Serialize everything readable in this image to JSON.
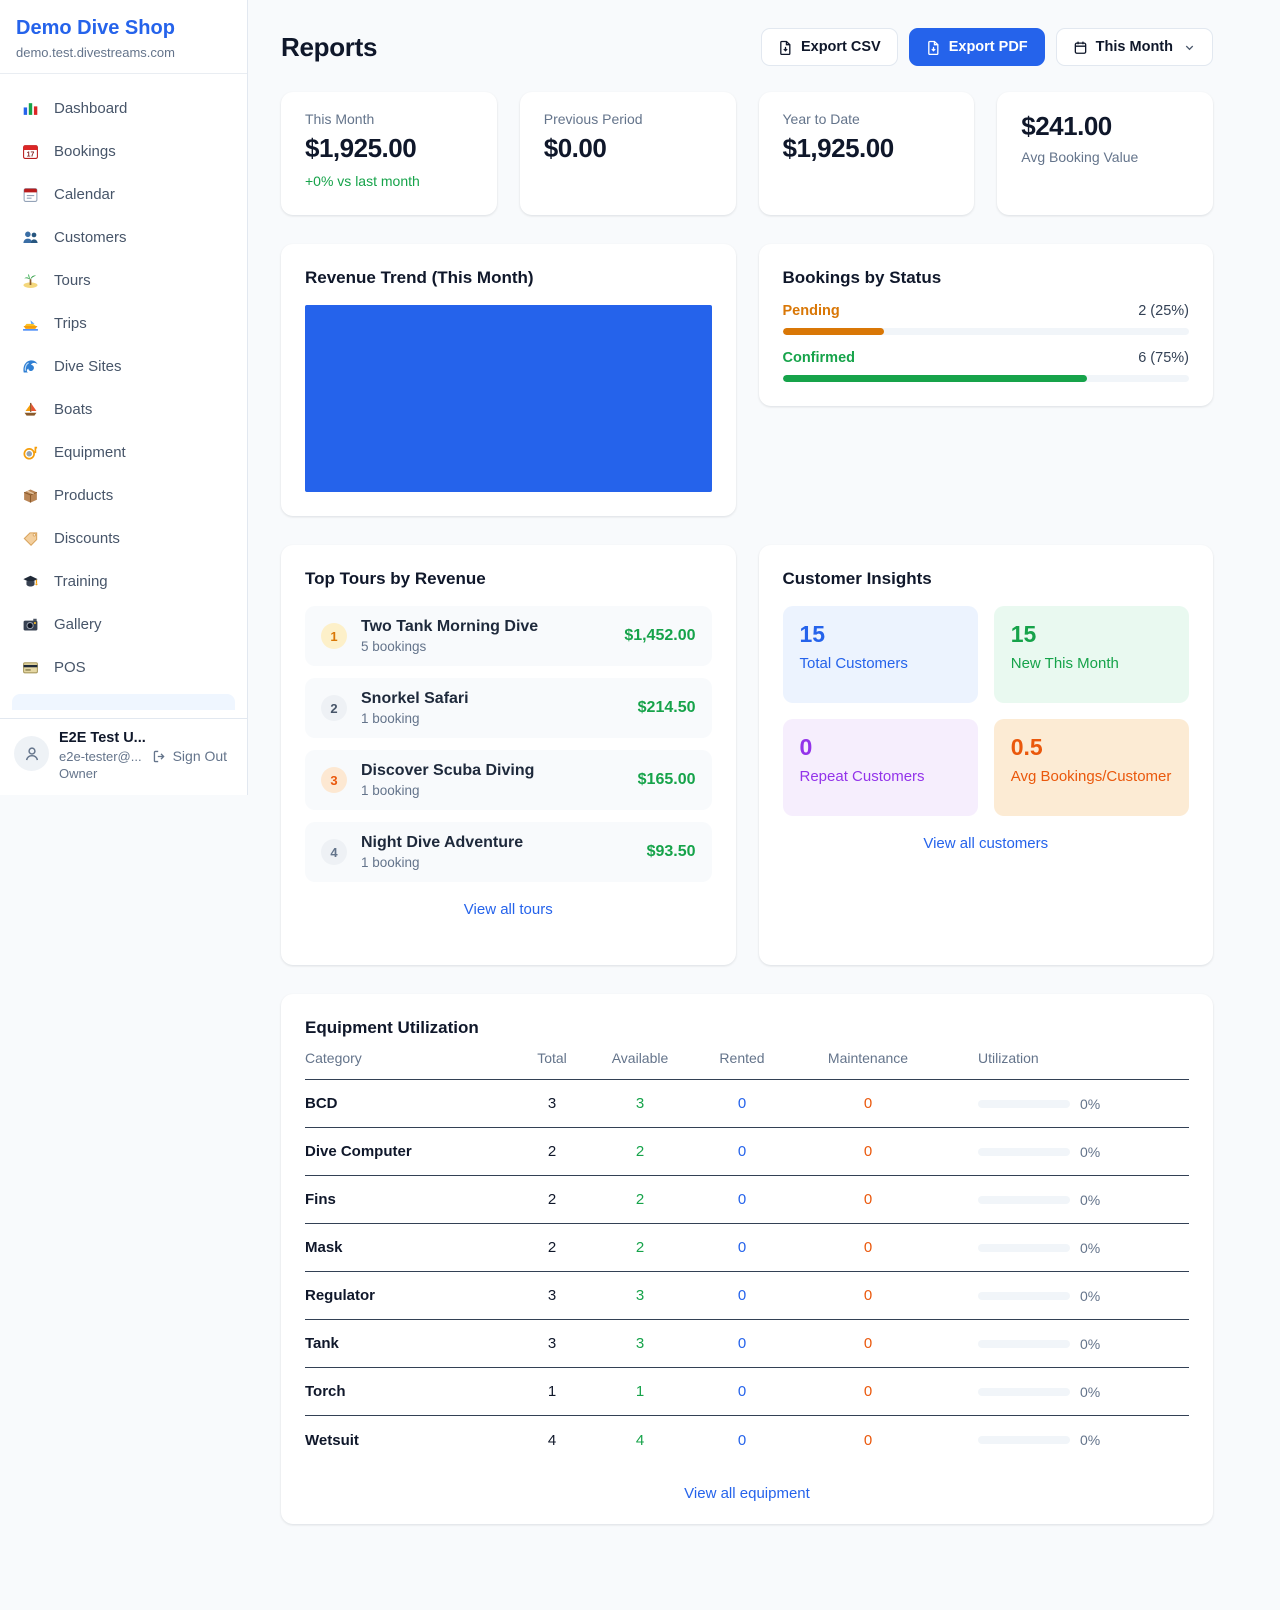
{
  "colors": {
    "accent_blue": "#2563eb",
    "green": "#16a34a",
    "pending_orange": "#d97706",
    "maintenance_orange": "#ea580c",
    "purple": "#9333ea",
    "muted_gray": "#64748b"
  },
  "sidebar": {
    "brand": {
      "name": "Demo Dive Shop",
      "domain": "demo.test.divestreams.com"
    },
    "nav": [
      {
        "icon": "dashboard",
        "label": "Dashboard"
      },
      {
        "icon": "bookings",
        "label": "Bookings"
      },
      {
        "icon": "calendar",
        "label": "Calendar"
      },
      {
        "icon": "customers",
        "label": "Customers"
      },
      {
        "icon": "tours",
        "label": "Tours"
      },
      {
        "icon": "trips",
        "label": "Trips"
      },
      {
        "icon": "divesites",
        "label": "Dive Sites"
      },
      {
        "icon": "boats",
        "label": "Boats"
      },
      {
        "icon": "equipment",
        "label": "Equipment"
      },
      {
        "icon": "products",
        "label": "Products"
      },
      {
        "icon": "discounts",
        "label": "Discounts"
      },
      {
        "icon": "training",
        "label": "Training"
      },
      {
        "icon": "gallery",
        "label": "Gallery"
      },
      {
        "icon": "pos",
        "label": "POS"
      }
    ],
    "user": {
      "name": "E2E Test U...",
      "email": "e2e-tester@...",
      "role": "Owner",
      "sign_out": "Sign Out"
    }
  },
  "header": {
    "title": "Reports",
    "export_csv_label": "Export CSV",
    "export_pdf_label": "Export PDF",
    "period_label": "This Month"
  },
  "stats": [
    {
      "label": "This Month",
      "value": "$1,925.00",
      "note": "+0% vs last month"
    },
    {
      "label": "Previous Period",
      "value": "$0.00"
    },
    {
      "label": "Year to Date",
      "value": "$1,925.00"
    },
    {
      "label": "Avg Booking Value",
      "value": "$241.00"
    }
  ],
  "revenue_trend": {
    "title": "Revenue Trend (This Month)",
    "bar_color": "#2563eb"
  },
  "chart_data": {
    "type": "bar",
    "title": "Revenue Trend (This Month)",
    "categories": [
      "This Month"
    ],
    "values": [
      1925.0
    ],
    "note": "single full-height bar filling entire plot area, no axes or labels visible"
  },
  "bookings_by_status": {
    "title": "Bookings by Status",
    "items": [
      {
        "label": "Pending",
        "count": "2 (25%)",
        "pct": 25,
        "color": "#d97706"
      },
      {
        "label": "Confirmed",
        "count": "6 (75%)",
        "pct": 75,
        "color": "#16a34a"
      }
    ]
  },
  "top_tours": {
    "title": "Top Tours by Revenue",
    "items": [
      {
        "rank": "1",
        "name": "Two Tank Morning Dive",
        "bookings": "5 bookings",
        "revenue": "$1,452.00"
      },
      {
        "rank": "2",
        "name": "Snorkel Safari",
        "bookings": "1 booking",
        "revenue": "$214.50"
      },
      {
        "rank": "3",
        "name": "Discover Scuba Diving",
        "bookings": "1 booking",
        "revenue": "$165.00"
      },
      {
        "rank": "4",
        "name": "Night Dive Adventure",
        "bookings": "1 booking",
        "revenue": "$93.50"
      }
    ],
    "view_all": "View all tours"
  },
  "customer_insights": {
    "title": "Customer Insights",
    "tiles": [
      {
        "value": "15",
        "label": "Total Customers"
      },
      {
        "value": "15",
        "label": "New This Month"
      },
      {
        "value": "0",
        "label": "Repeat Customers"
      },
      {
        "value": "0.5",
        "label": "Avg Bookings/Customer"
      }
    ],
    "view_all": "View all customers"
  },
  "equipment": {
    "title": "Equipment Utilization",
    "columns": [
      "Category",
      "Total",
      "Available",
      "Rented",
      "Maintenance",
      "Utilization"
    ],
    "rows": [
      {
        "category": "BCD",
        "total": "3",
        "available": "3",
        "rented": "0",
        "maintenance": "0",
        "utilization_pct": 0,
        "utilization_text": "0%"
      },
      {
        "category": "Dive Computer",
        "total": "2",
        "available": "2",
        "rented": "0",
        "maintenance": "0",
        "utilization_pct": 0,
        "utilization_text": "0%"
      },
      {
        "category": "Fins",
        "total": "2",
        "available": "2",
        "rented": "0",
        "maintenance": "0",
        "utilization_pct": 0,
        "utilization_text": "0%"
      },
      {
        "category": "Mask",
        "total": "2",
        "available": "2",
        "rented": "0",
        "maintenance": "0",
        "utilization_pct": 0,
        "utilization_text": "0%"
      },
      {
        "category": "Regulator",
        "total": "3",
        "available": "3",
        "rented": "0",
        "maintenance": "0",
        "utilization_pct": 0,
        "utilization_text": "0%"
      },
      {
        "category": "Tank",
        "total": "3",
        "available": "3",
        "rented": "0",
        "maintenance": "0",
        "utilization_pct": 0,
        "utilization_text": "0%"
      },
      {
        "category": "Torch",
        "total": "1",
        "available": "1",
        "rented": "0",
        "maintenance": "0",
        "utilization_pct": 0,
        "utilization_text": "0%"
      },
      {
        "category": "Wetsuit",
        "total": "4",
        "available": "4",
        "rented": "0",
        "maintenance": "0",
        "utilization_pct": 0,
        "utilization_text": "0%"
      }
    ],
    "view_all": "View all equipment"
  }
}
